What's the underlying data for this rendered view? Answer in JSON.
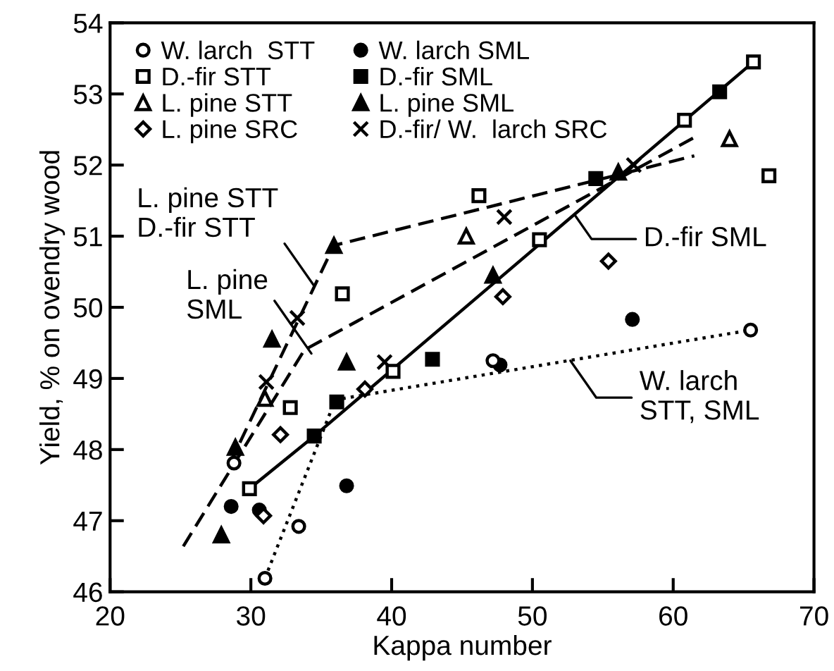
{
  "chart_data": {
    "type": "scatter",
    "xlabel": "Kappa number",
    "ylabel": "Yield, % on ovendry wood",
    "xlim": [
      20,
      70
    ],
    "xticks": [
      20,
      30,
      40,
      50,
      60,
      70
    ],
    "ylim": [
      46,
      54
    ],
    "yticks": [
      46,
      47,
      48,
      49,
      50,
      51,
      52,
      53,
      54
    ],
    "grid": false,
    "legend": "top left",
    "series": [
      {
        "name": "W. larch  STT",
        "marker": "circle",
        "color": "#ffffff",
        "x": [
          31.0,
          33.4,
          28.8,
          47.2,
          65.5
        ],
        "values": [
          46.19,
          46.92,
          47.81,
          49.25,
          49.68
        ]
      },
      {
        "name": "D.-fir STT",
        "marker": "square",
        "color": "#ffffff",
        "x": [
          29.9,
          32.8,
          40.1,
          36.5,
          46.2,
          50.5,
          60.8,
          65.7,
          66.8
        ],
        "values": [
          47.45,
          48.59,
          49.1,
          50.19,
          51.57,
          50.95,
          52.63,
          53.45,
          51.85
        ]
      },
      {
        "name": "L. pine STT",
        "marker": "triangle",
        "color": "#ffffff",
        "x": [
          31.0,
          45.3,
          64.0
        ],
        "values": [
          48.72,
          51.0,
          52.37
        ]
      },
      {
        "name": "L. pine SRC",
        "marker": "diamond",
        "color": "#ffffff",
        "x": [
          30.9,
          32.1,
          38.1,
          47.9,
          55.4
        ],
        "values": [
          47.07,
          48.21,
          48.85,
          50.15,
          50.65
        ]
      },
      {
        "name": "W. larch SML",
        "marker": "circle",
        "color": "#000000",
        "x": [
          28.6,
          30.6,
          36.8,
          47.7,
          57.1
        ],
        "values": [
          47.2,
          47.15,
          47.49,
          49.19,
          49.83
        ]
      },
      {
        "name": "D.-fir SML",
        "marker": "square",
        "color": "#000000",
        "x": [
          34.5,
          36.1,
          42.9,
          54.5,
          63.3
        ],
        "values": [
          48.19,
          48.67,
          49.27,
          51.81,
          53.03
        ]
      },
      {
        "name": "L. pine SML",
        "marker": "triangle",
        "color": "#000000",
        "x": [
          27.9,
          28.9,
          31.5,
          36.8,
          35.9,
          47.2,
          56.1
        ],
        "values": [
          46.8,
          48.03,
          49.55,
          49.23,
          50.87,
          50.45,
          51.9
        ]
      },
      {
        "name": "D.-fir/ W.  larch SRC",
        "marker": "cross",
        "color": "#000000",
        "x": [
          31.1,
          33.3,
          39.5,
          48.0,
          57.2
        ],
        "values": [
          48.95,
          49.85,
          49.23,
          51.27,
          52.0
        ]
      },
      {
        "type": "line",
        "line_style": "dashed",
        "color": "#000000",
        "x": [
          28.5,
          35.9,
          61.5
        ],
        "values": [
          47.8,
          50.87,
          52.13
        ]
      },
      {
        "type": "line",
        "line_style": "dashed",
        "color": "#000000",
        "x": [
          25.2,
          33.8,
          61.7
        ],
        "values": [
          46.64,
          49.4,
          52.41
        ]
      },
      {
        "type": "line",
        "line_style": "solid",
        "color": "#000000",
        "x": [
          29.9,
          34.5,
          65.7
        ],
        "values": [
          47.45,
          48.19,
          53.45
        ]
      },
      {
        "type": "line",
        "line_style": "dotted",
        "color": "#000000",
        "x": [
          31.0,
          36.0,
          65.5
        ],
        "values": [
          46.19,
          48.7,
          49.68
        ]
      }
    ],
    "annotations": [
      {
        "text": "L. pine STT\nD.-fir STT",
        "x": 34.5,
        "y": 50.3
      },
      {
        "text": "L. pine\nSML",
        "x": 34.3,
        "y": 49.35
      },
      {
        "text": "D.-fir SML",
        "x": 53.0,
        "y": 51.3
      },
      {
        "text": "W. larch\nSTT, SML",
        "x": 52.7,
        "y": 49.25
      }
    ]
  }
}
